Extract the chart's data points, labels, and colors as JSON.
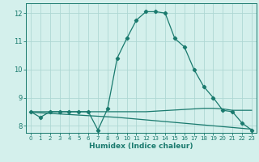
{
  "xlabel": "Humidex (Indice chaleur)",
  "background_color": "#d4f0ec",
  "grid_color": "#aed8d4",
  "line_color": "#1a7a6e",
  "xlim": [
    -0.5,
    23.5
  ],
  "ylim": [
    7.75,
    12.35
  ],
  "xticks": [
    0,
    1,
    2,
    3,
    4,
    5,
    6,
    7,
    8,
    9,
    10,
    11,
    12,
    13,
    14,
    15,
    16,
    17,
    18,
    19,
    20,
    21,
    22,
    23
  ],
  "yticks": [
    8,
    9,
    10,
    11,
    12
  ],
  "series1_x": [
    0,
    1,
    2,
    3,
    4,
    5,
    6,
    7,
    8,
    9,
    10,
    11,
    12,
    13,
    14,
    15,
    16,
    17,
    18,
    19,
    20,
    21,
    22,
    23
  ],
  "series1_y": [
    8.5,
    8.3,
    8.5,
    8.5,
    8.5,
    8.5,
    8.5,
    7.85,
    8.6,
    10.4,
    11.1,
    11.75,
    12.05,
    12.05,
    12.0,
    11.1,
    10.8,
    10.0,
    9.4,
    9.0,
    8.55,
    8.5,
    8.1,
    7.85
  ],
  "series2_x": [
    0,
    1,
    2,
    3,
    4,
    5,
    6,
    7,
    8,
    9,
    10,
    11,
    12,
    13,
    14,
    15,
    16,
    17,
    18,
    19,
    20,
    21,
    22,
    23
  ],
  "series2_y": [
    8.5,
    8.5,
    8.5,
    8.5,
    8.5,
    8.5,
    8.5,
    8.5,
    8.5,
    8.5,
    8.5,
    8.5,
    8.5,
    8.52,
    8.54,
    8.56,
    8.58,
    8.6,
    8.62,
    8.62,
    8.6,
    8.55,
    8.55,
    8.55
  ],
  "series3_x": [
    0,
    1,
    2,
    3,
    4,
    5,
    6,
    7,
    8,
    9,
    10,
    11,
    12,
    13,
    14,
    15,
    16,
    17,
    18,
    19,
    20,
    21,
    22,
    23
  ],
  "series3_y": [
    8.48,
    8.46,
    8.44,
    8.42,
    8.4,
    8.38,
    8.36,
    8.34,
    8.32,
    8.3,
    8.27,
    8.24,
    8.21,
    8.18,
    8.15,
    8.12,
    8.09,
    8.06,
    8.03,
    8.0,
    7.97,
    7.94,
    7.91,
    7.88
  ]
}
